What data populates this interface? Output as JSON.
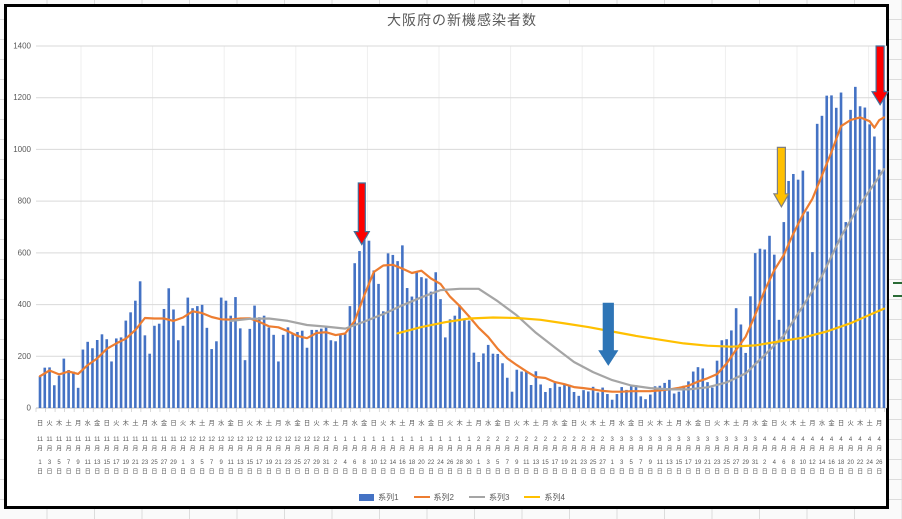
{
  "sheet": {
    "green_mark_color": "#2a6b35",
    "green_marks": [
      283,
      296
    ]
  },
  "chart": {
    "title": "大阪府の新機感染者数",
    "text_color": "#595959",
    "grid_color": "#d9d9d9",
    "y_axis": {
      "ticks": [
        0,
        200,
        400,
        600,
        800,
        1000,
        1200,
        1400
      ]
    },
    "x_axis": {
      "month_suffix": "月",
      "day_suffix": "日",
      "tick_interval_days": 2
    },
    "legend": [
      {
        "label": "系列1",
        "type": "bar",
        "color": "#4472C4"
      },
      {
        "label": "系列2",
        "type": "line",
        "color": "#ED7D31"
      },
      {
        "label": "系列3",
        "type": "line",
        "color": "#A5A5A5"
      },
      {
        "label": "系列4",
        "type": "line",
        "color": "#FFC000"
      }
    ]
  },
  "chart_data": {
    "type": "bar",
    "title": "大阪府の新機感染者数",
    "xlabel": "",
    "ylabel": "",
    "ylim": [
      0,
      1400
    ],
    "grid": true,
    "legend_position": "bottom",
    "x_start": "11月1日(日)",
    "x_end": "4月27日(火)",
    "categories": [
      [
        "日",
        "11",
        "1"
      ],
      [
        "火",
        "11",
        "3"
      ],
      [
        "木",
        "11",
        "5"
      ],
      [
        "土",
        "11",
        "7"
      ],
      [
        "月",
        "11",
        "9"
      ],
      [
        "水",
        "11",
        "11"
      ],
      [
        "金",
        "11",
        "13"
      ],
      [
        "日",
        "11",
        "15"
      ],
      [
        "火",
        "11",
        "17"
      ],
      [
        "木",
        "11",
        "19"
      ],
      [
        "土",
        "11",
        "21"
      ],
      [
        "月",
        "11",
        "23"
      ],
      [
        "水",
        "11",
        "25"
      ],
      [
        "金",
        "11",
        "27"
      ],
      [
        "日",
        "11",
        "29"
      ],
      [
        "火",
        "12",
        "1"
      ],
      [
        "木",
        "12",
        "3"
      ],
      [
        "土",
        "12",
        "5"
      ],
      [
        "月",
        "12",
        "7"
      ],
      [
        "水",
        "12",
        "9"
      ],
      [
        "金",
        "12",
        "11"
      ],
      [
        "日",
        "12",
        "13"
      ],
      [
        "火",
        "12",
        "15"
      ],
      [
        "木",
        "12",
        "17"
      ],
      [
        "土",
        "12",
        "19"
      ],
      [
        "月",
        "12",
        "21"
      ],
      [
        "水",
        "12",
        "23"
      ],
      [
        "金",
        "12",
        "25"
      ],
      [
        "日",
        "12",
        "27"
      ],
      [
        "火",
        "12",
        "29"
      ],
      [
        "木",
        "12",
        "31"
      ],
      [
        "土",
        "1",
        "2"
      ],
      [
        "月",
        "1",
        "4"
      ],
      [
        "水",
        "1",
        "6"
      ],
      [
        "金",
        "1",
        "8"
      ],
      [
        "日",
        "1",
        "10"
      ],
      [
        "火",
        "1",
        "12"
      ],
      [
        "木",
        "1",
        "14"
      ],
      [
        "土",
        "1",
        "16"
      ],
      [
        "月",
        "1",
        "18"
      ],
      [
        "水",
        "1",
        "20"
      ],
      [
        "金",
        "1",
        "22"
      ],
      [
        "日",
        "1",
        "24"
      ],
      [
        "火",
        "1",
        "26"
      ],
      [
        "木",
        "1",
        "28"
      ],
      [
        "土",
        "1",
        "30"
      ],
      [
        "月",
        "2",
        "1"
      ],
      [
        "水",
        "2",
        "3"
      ],
      [
        "金",
        "2",
        "5"
      ],
      [
        "日",
        "2",
        "7"
      ],
      [
        "火",
        "2",
        "9"
      ],
      [
        "木",
        "2",
        "11"
      ],
      [
        "土",
        "2",
        "13"
      ],
      [
        "月",
        "2",
        "15"
      ],
      [
        "水",
        "2",
        "17"
      ],
      [
        "金",
        "2",
        "19"
      ],
      [
        "日",
        "2",
        "21"
      ],
      [
        "火",
        "2",
        "23"
      ],
      [
        "木",
        "2",
        "25"
      ],
      [
        "土",
        "2",
        "27"
      ],
      [
        "月",
        "3",
        "1"
      ],
      [
        "水",
        "3",
        "3"
      ],
      [
        "金",
        "3",
        "5"
      ],
      [
        "日",
        "3",
        "7"
      ],
      [
        "火",
        "3",
        "9"
      ],
      [
        "木",
        "3",
        "11"
      ],
      [
        "土",
        "3",
        "13"
      ],
      [
        "月",
        "3",
        "15"
      ],
      [
        "水",
        "3",
        "17"
      ],
      [
        "金",
        "3",
        "19"
      ],
      [
        "日",
        "3",
        "21"
      ],
      [
        "火",
        "3",
        "23"
      ],
      [
        "木",
        "3",
        "25"
      ],
      [
        "土",
        "3",
        "27"
      ],
      [
        "月",
        "3",
        "29"
      ],
      [
        "水",
        "3",
        "31"
      ],
      [
        "金",
        "4",
        "2"
      ],
      [
        "日",
        "4",
        "4"
      ],
      [
        "火",
        "4",
        "6"
      ],
      [
        "木",
        "4",
        "8"
      ],
      [
        "土",
        "4",
        "10"
      ],
      [
        "月",
        "4",
        "12"
      ],
      [
        "水",
        "4",
        "14"
      ],
      [
        "金",
        "4",
        "16"
      ],
      [
        "日",
        "4",
        "18"
      ],
      [
        "火",
        "4",
        "20"
      ],
      [
        "木",
        "4",
        "22"
      ],
      [
        "土",
        "4",
        "24"
      ],
      [
        "月",
        "4",
        "26"
      ]
    ],
    "series": [
      {
        "name": "系列1",
        "type": "bar",
        "color": "#4472C4",
        "values": [
          123,
          156,
          157,
          88,
          125,
          191,
          147,
          141,
          78,
          226,
          256,
          231,
          263,
          285,
          266,
          180,
          269,
          273,
          338,
          370,
          415,
          490,
          281,
          210,
          318,
          326,
          383,
          463,
          381,
          262,
          318,
          427,
          386,
          394,
          399,
          310,
          228,
          258,
          427,
          415,
          357,
          429,
          308,
          185,
          306,
          396,
          351,
          357,
          311,
          283,
          180,
          283,
          312,
          289,
          294,
          299,
          233,
          302,
          302,
          307,
          313,
          262,
          258,
          286,
          286,
          394,
          560,
          607,
          654,
          647,
          532,
          480,
          374,
          598,
          592,
          568,
          629,
          464,
          431,
          525,
          506,
          501,
          450,
          525,
          421,
          273,
          343,
          357,
          397,
          346,
          338,
          214,
          178,
          211,
          244,
          210,
          209,
          173,
          117,
          63,
          148,
          141,
          141,
          89,
          142,
          91,
          62,
          77,
          100,
          82,
          91,
          90,
          62,
          47,
          69,
          64,
          82,
          60,
          79,
          54,
          32,
          54,
          81,
          70,
          84,
          88,
          45,
          34,
          52,
          84,
          86,
          97,
          109,
          56,
          63,
          86,
          103,
          141,
          158,
          153,
          100,
          79,
          183,
          262,
          266,
          300,
          386,
          323,
          213,
          432,
          599,
          616,
          613,
          666,
          593,
          341,
          719,
          878,
          905,
          883,
          918,
          760,
          603,
          1099,
          1130,
          1208,
          1209,
          1161,
          1220,
          719,
          1153,
          1242,
          1167,
          1162,
          1097,
          1050,
          922,
          1230
        ]
      },
      {
        "name": "系列2",
        "type": "line",
        "color": "#ED7D31",
        "points": [
          [
            0,
            123
          ],
          [
            2,
            145
          ],
          [
            4,
            130
          ],
          [
            6,
            141
          ],
          [
            8,
            132
          ],
          [
            10,
            166
          ],
          [
            12,
            192
          ],
          [
            14,
            229
          ],
          [
            16,
            250
          ],
          [
            18,
            268
          ],
          [
            20,
            302
          ],
          [
            22,
            348
          ],
          [
            24,
            346
          ],
          [
            26,
            346
          ],
          [
            28,
            337
          ],
          [
            30,
            350
          ],
          [
            32,
            374
          ],
          [
            34,
            367
          ],
          [
            36,
            352
          ],
          [
            38,
            343
          ],
          [
            40,
            342
          ],
          [
            42,
            346
          ],
          [
            44,
            347
          ],
          [
            46,
            333
          ],
          [
            48,
            316
          ],
          [
            50,
            312
          ],
          [
            52,
            297
          ],
          [
            54,
            279
          ],
          [
            56,
            270
          ],
          [
            58,
            290
          ],
          [
            60,
            293
          ],
          [
            62,
            282
          ],
          [
            64,
            288
          ],
          [
            66,
            337
          ],
          [
            68,
            435
          ],
          [
            70,
            526
          ],
          [
            72,
            551
          ],
          [
            74,
            554
          ],
          [
            76,
            539
          ],
          [
            78,
            522
          ],
          [
            80,
            531
          ],
          [
            82,
            501
          ],
          [
            84,
            480
          ],
          [
            86,
            431
          ],
          [
            88,
            395
          ],
          [
            90,
            354
          ],
          [
            92,
            310
          ],
          [
            94,
            275
          ],
          [
            96,
            229
          ],
          [
            98,
            192
          ],
          [
            100,
            166
          ],
          [
            102,
            142
          ],
          [
            104,
            120
          ],
          [
            106,
            116
          ],
          [
            108,
            100
          ],
          [
            110,
            92
          ],
          [
            112,
            81
          ],
          [
            114,
            77
          ],
          [
            116,
            72
          ],
          [
            118,
            66
          ],
          [
            120,
            63
          ],
          [
            122,
            63
          ],
          [
            124,
            65
          ],
          [
            126,
            65
          ],
          [
            128,
            65
          ],
          [
            130,
            68
          ],
          [
            132,
            72
          ],
          [
            134,
            78
          ],
          [
            136,
            86
          ],
          [
            138,
            102
          ],
          [
            140,
            115
          ],
          [
            142,
            131
          ],
          [
            144,
            172
          ],
          [
            146,
            225
          ],
          [
            148,
            276
          ],
          [
            150,
            360
          ],
          [
            152,
            455
          ],
          [
            154,
            533
          ],
          [
            156,
            592
          ],
          [
            158,
            674
          ],
          [
            160,
            748
          ],
          [
            162,
            809
          ],
          [
            164,
            900
          ],
          [
            166,
            990
          ],
          [
            168,
            1090
          ],
          [
            170,
            1114
          ],
          [
            172,
            1124
          ],
          [
            174,
            1109
          ],
          [
            175,
            1084
          ],
          [
            176,
            1113
          ],
          [
            177,
            1124
          ]
        ]
      },
      {
        "name": "系列3",
        "type": "line",
        "color": "#A5A5A5",
        "points": [
          [
            40,
            337
          ],
          [
            44,
            345
          ],
          [
            48,
            346
          ],
          [
            52,
            337
          ],
          [
            56,
            321
          ],
          [
            60,
            315
          ],
          [
            64,
            307
          ],
          [
            68,
            334
          ],
          [
            72,
            363
          ],
          [
            76,
            397
          ],
          [
            80,
            428
          ],
          [
            84,
            456
          ],
          [
            88,
            461
          ],
          [
            92,
            461
          ],
          [
            96,
            413
          ],
          [
            100,
            358
          ],
          [
            104,
            291
          ],
          [
            108,
            234
          ],
          [
            112,
            178
          ],
          [
            116,
            139
          ],
          [
            120,
            108
          ],
          [
            124,
            87
          ],
          [
            128,
            77
          ],
          [
            132,
            72
          ],
          [
            136,
            72
          ],
          [
            140,
            80
          ],
          [
            144,
            99
          ],
          [
            148,
            134
          ],
          [
            152,
            205
          ],
          [
            156,
            280
          ],
          [
            160,
            394
          ],
          [
            164,
            511
          ],
          [
            168,
            663
          ],
          [
            172,
            788
          ],
          [
            176,
            895
          ],
          [
            177,
            924
          ]
        ]
      },
      {
        "name": "系列4",
        "type": "line",
        "color": "#FFC000",
        "points": [
          [
            75,
            289
          ],
          [
            80,
            313
          ],
          [
            85,
            332
          ],
          [
            90,
            346
          ],
          [
            95,
            350
          ],
          [
            100,
            348
          ],
          [
            105,
            341
          ],
          [
            110,
            327
          ],
          [
            115,
            313
          ],
          [
            120,
            296
          ],
          [
            125,
            279
          ],
          [
            130,
            264
          ],
          [
            135,
            250
          ],
          [
            140,
            241
          ],
          [
            145,
            237
          ],
          [
            150,
            242
          ],
          [
            155,
            257
          ],
          [
            160,
            272
          ],
          [
            165,
            296
          ],
          [
            170,
            328
          ],
          [
            175,
            368
          ],
          [
            177,
            384
          ]
        ]
      }
    ],
    "annotations": [
      {
        "name": "red-arrow-january-peak",
        "fill": "#FF0000",
        "stroke": "#41719C",
        "cx_index": 67.5,
        "top_value": 870,
        "tip_value": 632,
        "shaft_w": 7,
        "head_w": 15,
        "head_h": 13
      },
      {
        "name": "blue-arrow-march-trough",
        "fill": "#2E75B6",
        "stroke": "#2E75B6",
        "cx_index": 119.2,
        "top_value": 405,
        "tip_value": 167,
        "shaft_w": 10,
        "head_w": 18,
        "head_h": 14
      },
      {
        "name": "yellow-arrow-april-rise",
        "fill": "#FFC000",
        "stroke": "#7F7F7F",
        "cx_index": 155.5,
        "top_value": 1008,
        "tip_value": 778,
        "shaft_w": 8,
        "head_w": 15,
        "head_h": 13
      },
      {
        "name": "red-arrow-april-peak",
        "fill": "#FF0000",
        "stroke": "#41719C",
        "cx_index": 176.2,
        "top_value": 1400,
        "tip_value": 1173,
        "shaft_w": 8,
        "head_w": 16,
        "head_h": 13
      }
    ]
  }
}
